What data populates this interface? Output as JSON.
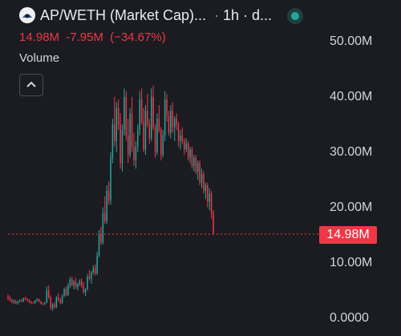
{
  "header": {
    "symbol_title": "AP/WETH (Market Cap)...",
    "separator": "·",
    "interval": "1h · d...",
    "market_status": "open"
  },
  "price": {
    "last": "14.98M",
    "change": "-7.95M",
    "change_percent": "(−34.67%)"
  },
  "volume": {
    "label": "Volume",
    "collapse_icon": "chevron-up-icon"
  },
  "axis": {
    "ticks": [
      "50.00M",
      "40.00M",
      "30.00M",
      "20.00M",
      "10.00M",
      "0.0000"
    ]
  },
  "last_price_tag": "14.98M",
  "colors": {
    "background": "#1b1c22",
    "up": "#26a69a",
    "down": "#f23645",
    "text": "#d1d4dc",
    "status": "#26a69a"
  },
  "chart_data": {
    "type": "candlestick",
    "y_unit": "market cap",
    "ylim": [
      0,
      52000000
    ],
    "last_value": 14980000,
    "interval": "1h",
    "candles_ohlc_millions": [
      [
        3.8,
        4.2,
        3.2,
        3.5
      ],
      [
        3.5,
        3.9,
        2.9,
        3.1
      ],
      [
        3.1,
        3.4,
        2.6,
        2.8
      ],
      [
        2.8,
        3.3,
        2.5,
        3.0
      ],
      [
        3.0,
        3.2,
        2.4,
        2.6
      ],
      [
        2.6,
        3.0,
        2.3,
        2.9
      ],
      [
        2.9,
        3.3,
        2.7,
        3.1
      ],
      [
        3.1,
        3.4,
        2.8,
        2.9
      ],
      [
        2.9,
        3.6,
        2.8,
        3.5
      ],
      [
        3.5,
        3.8,
        3.2,
        3.3
      ],
      [
        3.3,
        3.5,
        2.9,
        3.1
      ],
      [
        3.1,
        3.3,
        2.6,
        2.8
      ],
      [
        2.8,
        3.0,
        2.4,
        2.7
      ],
      [
        2.7,
        2.9,
        2.5,
        2.6
      ],
      [
        2.6,
        3.2,
        2.5,
        3.1
      ],
      [
        3.1,
        3.5,
        2.9,
        3.3
      ],
      [
        3.3,
        3.4,
        2.7,
        2.9
      ],
      [
        2.9,
        3.0,
        2.4,
        2.5
      ],
      [
        2.5,
        2.7,
        2.2,
        2.4
      ],
      [
        2.4,
        2.8,
        2.3,
        2.7
      ],
      [
        2.7,
        5.6,
        2.6,
        4.9
      ],
      [
        4.9,
        5.8,
        3.4,
        3.6
      ],
      [
        3.6,
        4.0,
        1.4,
        1.8
      ],
      [
        1.8,
        2.6,
        1.2,
        2.3
      ],
      [
        2.3,
        2.8,
        1.6,
        1.9
      ],
      [
        1.9,
        3.9,
        1.7,
        3.6
      ],
      [
        3.6,
        4.4,
        2.9,
        3.1
      ],
      [
        3.1,
        3.6,
        2.4,
        2.6
      ],
      [
        2.6,
        4.2,
        2.5,
        3.9
      ],
      [
        3.9,
        5.4,
        3.7,
        5.1
      ],
      [
        5.1,
        5.6,
        3.9,
        4.1
      ],
      [
        4.1,
        6.2,
        3.9,
        5.8
      ],
      [
        5.8,
        7.3,
        5.3,
        6.9
      ],
      [
        6.9,
        7.4,
        5.6,
        5.9
      ],
      [
        5.9,
        6.8,
        5.1,
        6.4
      ],
      [
        6.4,
        7.2,
        5.2,
        5.5
      ],
      [
        5.5,
        6.3,
        4.9,
        6.1
      ],
      [
        6.1,
        6.9,
        5.7,
        6.6
      ],
      [
        6.6,
        7.1,
        5.4,
        5.7
      ],
      [
        5.7,
        6.4,
        4.3,
        4.6
      ],
      [
        4.6,
        5.3,
        3.9,
        5.1
      ],
      [
        5.1,
        7.9,
        4.9,
        7.4
      ],
      [
        7.4,
        8.6,
        6.7,
        7.0
      ],
      [
        7.0,
        8.4,
        6.1,
        8.1
      ],
      [
        8.1,
        9.4,
        7.8,
        8.9
      ],
      [
        8.9,
        9.6,
        7.6,
        8.0
      ],
      [
        8.0,
        11.9,
        7.7,
        11.2
      ],
      [
        11.2,
        15.8,
        10.9,
        15.1
      ],
      [
        15.1,
        16.4,
        13.1,
        13.6
      ],
      [
        13.6,
        19.9,
        13.2,
        18.9
      ],
      [
        18.9,
        21.9,
        16.9,
        17.4
      ],
      [
        17.4,
        23.9,
        16.9,
        22.9
      ],
      [
        22.9,
        24.6,
        20.4,
        21.1
      ],
      [
        21.1,
        29.9,
        20.4,
        28.9
      ],
      [
        28.9,
        35.9,
        27.9,
        34.9
      ],
      [
        34.9,
        39.9,
        30.9,
        31.9
      ],
      [
        31.9,
        38.9,
        29.9,
        37.9
      ],
      [
        37.9,
        39.4,
        33.9,
        34.9
      ],
      [
        34.9,
        36.9,
        26.9,
        27.9
      ],
      [
        27.9,
        34.9,
        26.4,
        33.9
      ],
      [
        33.9,
        41.4,
        32.9,
        39.9
      ],
      [
        39.9,
        40.9,
        31.9,
        32.9
      ],
      [
        32.9,
        35.9,
        27.9,
        29.4
      ],
      [
        29.4,
        37.9,
        28.9,
        36.9
      ],
      [
        36.9,
        39.9,
        29.9,
        30.9
      ],
      [
        30.9,
        33.4,
        27.4,
        28.4
      ],
      [
        28.4,
        31.9,
        26.9,
        30.9
      ],
      [
        30.9,
        34.9,
        29.9,
        33.9
      ],
      [
        33.9,
        40.9,
        32.9,
        39.4
      ],
      [
        39.4,
        41.4,
        34.9,
        35.4
      ],
      [
        35.4,
        37.9,
        29.9,
        30.4
      ],
      [
        30.4,
        38.4,
        29.4,
        37.4
      ],
      [
        37.4,
        40.4,
        34.4,
        34.9
      ],
      [
        34.9,
        35.9,
        31.4,
        32.4
      ],
      [
        32.4,
        41.4,
        31.9,
        39.9
      ],
      [
        39.9,
        41.9,
        33.9,
        34.4
      ],
      [
        34.4,
        34.9,
        28.9,
        29.9
      ],
      [
        29.9,
        36.9,
        29.4,
        35.9
      ],
      [
        35.9,
        38.4,
        33.4,
        33.9
      ],
      [
        33.9,
        34.4,
        28.4,
        29.4
      ],
      [
        29.4,
        33.9,
        28.9,
        32.9
      ],
      [
        32.9,
        40.9,
        31.9,
        39.4
      ],
      [
        39.4,
        40.4,
        35.4,
        36.4
      ],
      [
        36.4,
        37.4,
        32.9,
        33.4
      ],
      [
        33.4,
        38.4,
        32.4,
        37.4
      ],
      [
        37.4,
        38.9,
        33.4,
        34.4
      ],
      [
        34.4,
        36.4,
        31.9,
        35.9
      ],
      [
        35.9,
        36.9,
        33.9,
        34.9
      ],
      [
        34.9,
        35.4,
        30.9,
        31.9
      ],
      [
        31.9,
        33.9,
        30.4,
        32.9
      ],
      [
        32.9,
        34.4,
        31.4,
        31.9
      ],
      [
        31.9,
        32.4,
        29.4,
        30.4
      ],
      [
        30.4,
        32.4,
        29.9,
        31.4
      ],
      [
        31.4,
        31.9,
        28.4,
        28.9
      ],
      [
        28.9,
        30.9,
        27.9,
        30.4
      ],
      [
        30.4,
        30.9,
        26.9,
        27.4
      ],
      [
        27.4,
        29.4,
        26.4,
        28.9
      ],
      [
        28.9,
        29.4,
        25.9,
        26.4
      ],
      [
        26.4,
        28.4,
        24.9,
        27.9
      ],
      [
        27.9,
        28.4,
        23.9,
        24.4
      ],
      [
        24.4,
        26.9,
        23.4,
        25.9
      ],
      [
        25.9,
        26.4,
        22.4,
        22.9
      ],
      [
        22.9,
        24.4,
        21.4,
        23.9
      ],
      [
        23.9,
        24.4,
        19.9,
        20.9
      ],
      [
        20.9,
        23.4,
        19.4,
        22.4
      ],
      [
        22.4,
        22.9,
        17.9,
        18.9
      ],
      [
        18.9,
        19.4,
        14.98,
        14.98
      ]
    ]
  }
}
